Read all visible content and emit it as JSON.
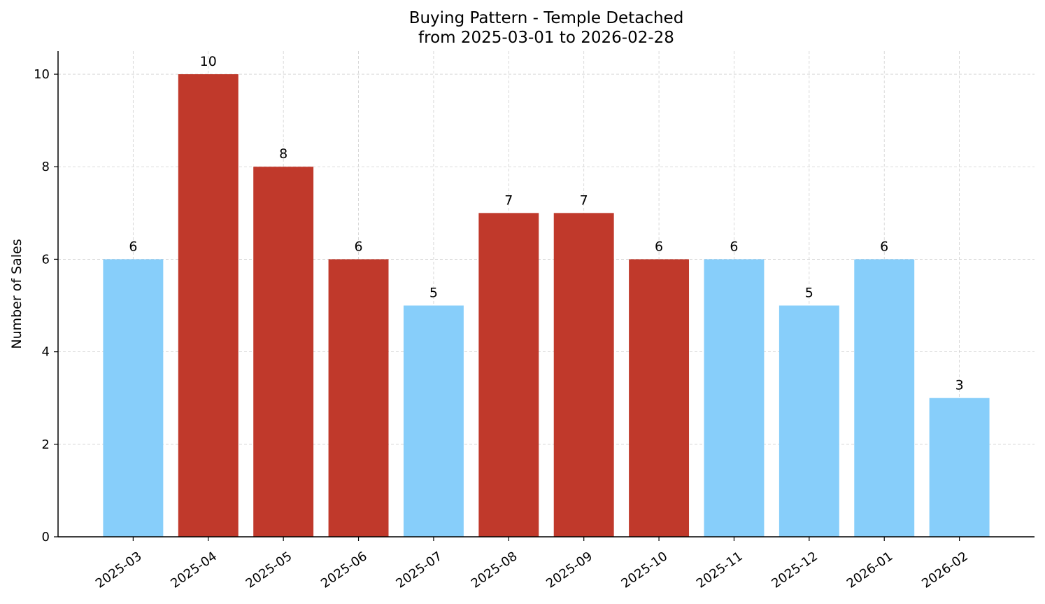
{
  "chart_data": {
    "type": "bar",
    "title": "Buying Pattern - Temple Detached",
    "subtitle": "from 2025-03-01 to 2026-02-28",
    "y_label": "Number of Sales",
    "categories": [
      "2025-03",
      "2025-04",
      "2025-05",
      "2025-06",
      "2025-07",
      "2025-08",
      "2025-09",
      "2025-10",
      "2025-11",
      "2025-12",
      "2026-01",
      "2026-02"
    ],
    "values": [
      6,
      10,
      8,
      6,
      5,
      7,
      7,
      6,
      6,
      5,
      6,
      3
    ],
    "colors": [
      "#87CEFA",
      "#C0392B",
      "#C0392B",
      "#C0392B",
      "#87CEFA",
      "#C0392B",
      "#C0392B",
      "#C0392B",
      "#87CEFA",
      "#87CEFA",
      "#87CEFA",
      "#87CEFA"
    ],
    "ylim": [
      0,
      10.5
    ],
    "yticks": [
      0,
      2,
      4,
      6,
      8,
      10
    ],
    "grid": true
  }
}
